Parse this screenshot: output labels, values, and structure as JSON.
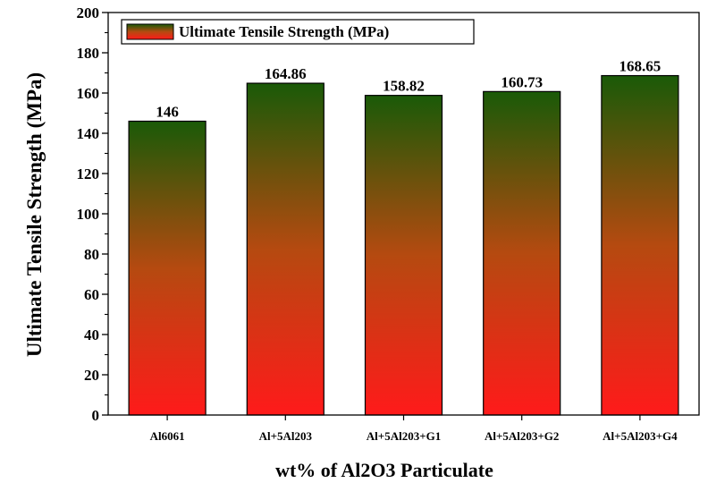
{
  "chart_data": {
    "type": "bar",
    "categories": [
      "Al6061",
      "Al+5Al203",
      "Al+5Al203+G1",
      "Al+5Al203+G2",
      "Al+5Al203+G4"
    ],
    "series": [
      {
        "name": "Ultimate Tensile Strength (MPa)",
        "values": [
          146,
          164.86,
          158.82,
          160.73,
          168.65
        ],
        "labels": [
          "146",
          "164.86",
          "158.82",
          "160.73",
          "168.65"
        ]
      }
    ],
    "xlabel": "wt% of Al2O3 Particulate",
    "ylabel": "Ultimate Tensile Strength (MPa)",
    "ylim": [
      0,
      200
    ],
    "yticks": [
      0,
      20,
      40,
      60,
      80,
      100,
      120,
      140,
      160,
      180,
      200
    ],
    "legend_position": "top-left",
    "grid": false,
    "colors": {
      "bar_top": "#1a5a08",
      "bar_bottom": "#ff1a1a",
      "axis": "#000000"
    }
  }
}
